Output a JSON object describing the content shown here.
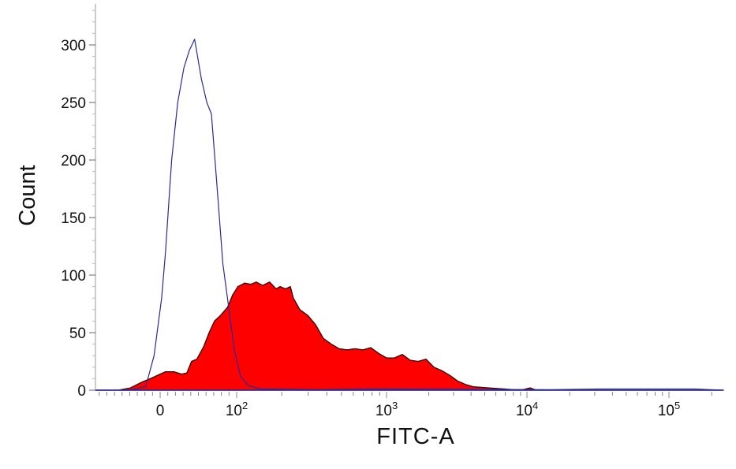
{
  "chart_data": {
    "type": "area",
    "xlabel": "FITC-A",
    "ylabel": "Count",
    "x_scale": "biexponential",
    "xlim": [
      -85,
      240000
    ],
    "ylim": [
      0,
      335
    ],
    "grid": false,
    "y_ticks": [
      0,
      50,
      100,
      150,
      200,
      250,
      300
    ],
    "x_ticks": [
      {
        "value": 0,
        "base": "0",
        "exp": ""
      },
      {
        "value": 100,
        "base": "10",
        "exp": "2"
      },
      {
        "value": 1000,
        "base": "10",
        "exp": "3"
      },
      {
        "value": 10000,
        "base": "10",
        "exp": "4"
      },
      {
        "value": 100000,
        "base": "10",
        "exp": "5"
      }
    ],
    "series": [
      {
        "style": "filled",
        "fill": "#ff0000",
        "stroke": "#330000",
        "x": [
          -85,
          -55,
          -39,
          -24,
          -13,
          -3,
          7,
          18,
          28,
          35,
          41,
          48,
          57,
          64,
          71,
          79,
          88,
          95,
          102,
          113,
          124,
          135,
          149,
          166,
          183,
          195,
          212,
          228,
          239,
          264,
          298,
          336,
          379,
          428,
          483,
          546,
          615,
          695,
          785,
          886,
          1000,
          1138,
          1296,
          1474,
          1679,
          1910,
          2174,
          2474,
          2815,
          3205,
          3648,
          4150,
          5375,
          6966,
          9015,
          10520,
          11660,
          15060,
          240000
        ],
        "y": [
          0,
          0,
          2,
          7,
          10,
          13,
          16,
          16,
          14,
          15,
          25,
          27,
          38,
          50,
          60,
          65,
          72,
          83,
          90,
          93,
          92,
          94,
          91,
          94,
          88,
          90,
          88,
          90,
          80,
          70,
          65,
          57,
          45,
          40,
          36,
          35,
          36,
          35,
          37,
          32,
          28,
          28,
          31,
          26,
          25,
          27,
          20,
          17,
          13,
          8,
          5,
          3,
          2,
          1,
          0,
          2,
          0,
          0,
          0
        ]
      },
      {
        "style": "line",
        "stroke": "#2a2a9a",
        "x": [
          -85,
          -40,
          -19,
          -8,
          2,
          7,
          15,
          23,
          31,
          38,
          45,
          54,
          61,
          67,
          74,
          82,
          90,
          97,
          106,
          120,
          144,
          336,
          886,
          15060,
          32430,
          150700,
          240000
        ],
        "y": [
          0,
          0,
          3,
          30,
          80,
          120,
          200,
          250,
          280,
          295,
          305,
          270,
          250,
          240,
          180,
          110,
          70,
          35,
          12,
          4,
          1,
          0.5,
          1,
          0.5,
          1,
          1,
          0
        ]
      }
    ]
  }
}
